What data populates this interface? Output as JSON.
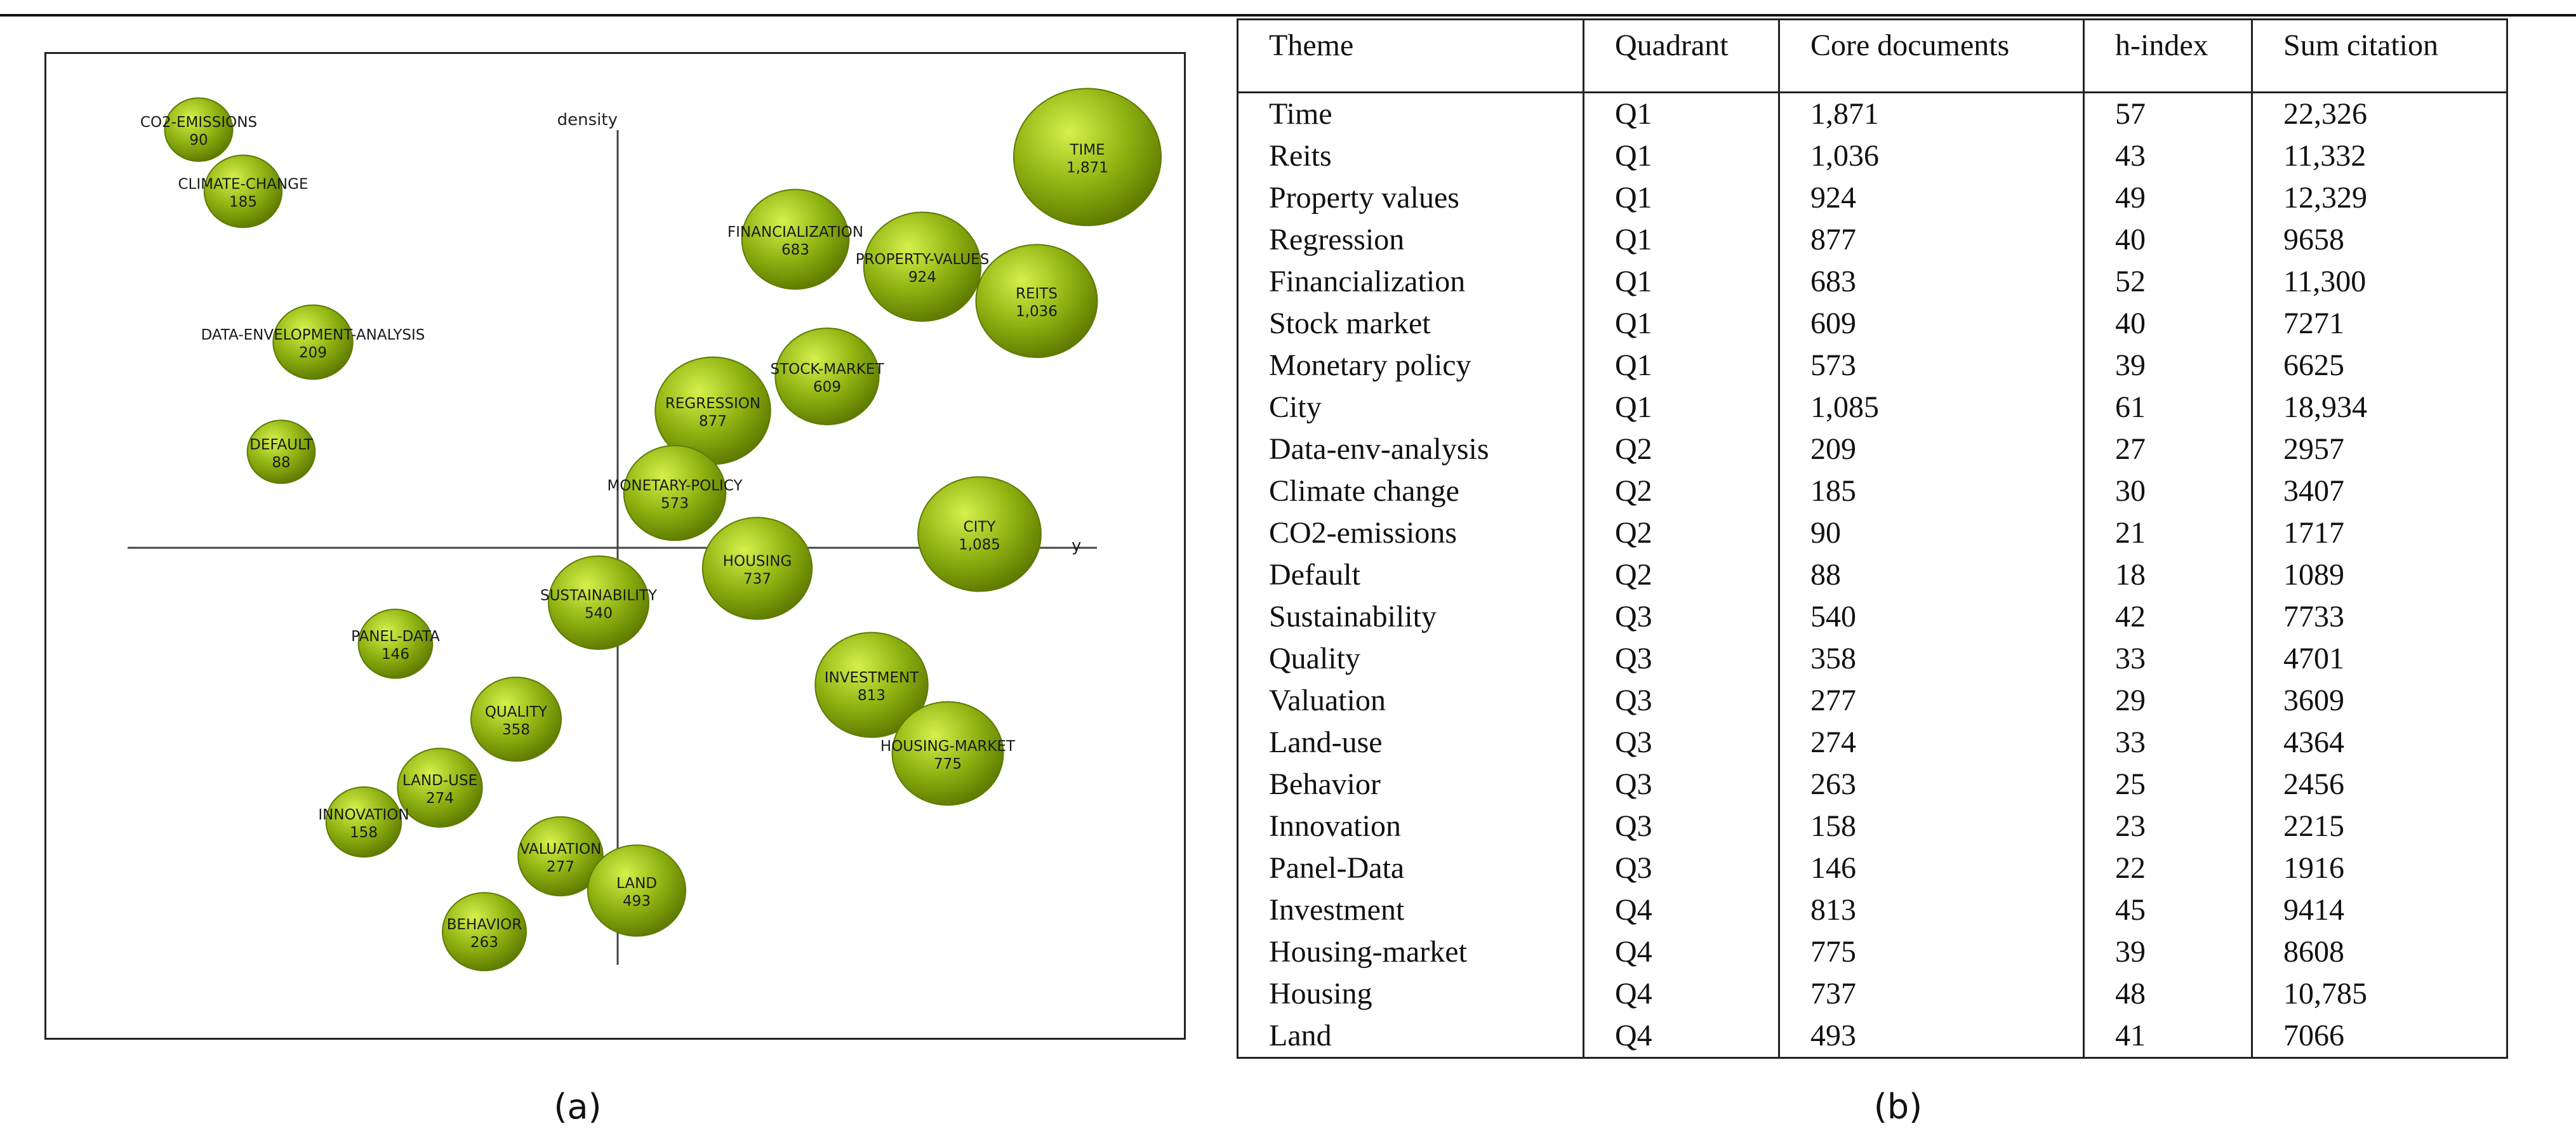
{
  "panel_a_label": "(a)",
  "panel_b_label": "(b)",
  "chart_data": {
    "type": "scatter",
    "subtype": "bubble",
    "title": "",
    "xlabel": "y",
    "ylabel": "density",
    "bubble_color": "#8fb412",
    "bubble_highlight": "#d7f04c",
    "bubble_edge": "#5e7b00",
    "legend": "none",
    "grid": false,
    "points": [
      {
        "label": "CO2-EMISSIONS",
        "value": "90",
        "size": 90,
        "x": -6.6,
        "y": 6.1
      },
      {
        "label": "CLIMATE-CHANGE",
        "value": "185",
        "size": 185,
        "x": -5.9,
        "y": 5.2
      },
      {
        "label": "DATA-ENVELOPMENT-ANALYSIS",
        "value": "209",
        "size": 209,
        "x": -4.8,
        "y": 3.0
      },
      {
        "label": "DEFAULT",
        "value": "88",
        "size": 88,
        "x": -5.3,
        "y": 1.4
      },
      {
        "label": "TIME",
        "value": "1,871",
        "size": 1871,
        "x": 7.4,
        "y": 5.7
      },
      {
        "label": "FINANCIALIZATION",
        "value": "683",
        "size": 683,
        "x": 2.8,
        "y": 4.5
      },
      {
        "label": "PROPERTY-VALUES",
        "value": "924",
        "size": 924,
        "x": 4.8,
        "y": 4.1
      },
      {
        "label": "REITS",
        "value": "1,036",
        "size": 1036,
        "x": 6.6,
        "y": 3.6
      },
      {
        "label": "STOCK-MARKET",
        "value": "609",
        "size": 609,
        "x": 3.3,
        "y": 2.5
      },
      {
        "label": "REGRESSION",
        "value": "877",
        "size": 877,
        "x": 1.5,
        "y": 2.0
      },
      {
        "label": "MONETARY-POLICY",
        "value": "573",
        "size": 573,
        "x": 0.9,
        "y": 0.8
      },
      {
        "label": "CITY",
        "value": "1,085",
        "size": 1085,
        "x": 5.7,
        "y": 0.2
      },
      {
        "label": "HOUSING",
        "value": "737",
        "size": 737,
        "x": 2.2,
        "y": -0.3
      },
      {
        "label": "SUSTAINABILITY",
        "value": "540",
        "size": 540,
        "x": -0.3,
        "y": -0.8
      },
      {
        "label": "PANEL-DATA",
        "value": "146",
        "size": 146,
        "x": -3.5,
        "y": -1.4
      },
      {
        "label": "INVESTMENT",
        "value": "813",
        "size": 813,
        "x": 4.0,
        "y": -2.0
      },
      {
        "label": "QUALITY",
        "value": "358",
        "size": 358,
        "x": -1.6,
        "y": -2.5
      },
      {
        "label": "HOUSING-MARKET",
        "value": "775",
        "size": 775,
        "x": 5.2,
        "y": -3.0
      },
      {
        "label": "LAND-USE",
        "value": "274",
        "size": 274,
        "x": -2.8,
        "y": -3.5
      },
      {
        "label": "INNOVATION",
        "value": "158",
        "size": 158,
        "x": -4.0,
        "y": -4.0
      },
      {
        "label": "VALUATION",
        "value": "277",
        "size": 277,
        "x": -0.9,
        "y": -4.5
      },
      {
        "label": "LAND",
        "value": "493",
        "size": 493,
        "x": 0.3,
        "y": -5.0
      },
      {
        "label": "BEHAVIOR",
        "value": "263",
        "size": 263,
        "x": -2.1,
        "y": -5.6
      }
    ]
  },
  "table": {
    "headers": [
      "Theme",
      "Quadrant",
      "Core documents",
      "h-index",
      "Sum citation"
    ],
    "rows": [
      [
        "Time",
        "Q1",
        "1,871",
        "57",
        "22,326"
      ],
      [
        "Reits",
        "Q1",
        "1,036",
        "43",
        "11,332"
      ],
      [
        "Property values",
        "Q1",
        "924",
        "49",
        "12,329"
      ],
      [
        "Regression",
        "Q1",
        "877",
        "40",
        "9658"
      ],
      [
        "Financialization",
        "Q1",
        "683",
        "52",
        "11,300"
      ],
      [
        "Stock market",
        "Q1",
        "609",
        "40",
        "7271"
      ],
      [
        "Monetary policy",
        "Q1",
        "573",
        "39",
        "6625"
      ],
      [
        "City",
        "Q1",
        "1,085",
        "61",
        "18,934"
      ],
      [
        "Data-env-analysis",
        "Q2",
        "209",
        "27",
        "2957"
      ],
      [
        "Climate change",
        "Q2",
        "185",
        "30",
        "3407"
      ],
      [
        "CO2-emissions",
        "Q2",
        "90",
        "21",
        "1717"
      ],
      [
        "Default",
        "Q2",
        "88",
        "18",
        "1089"
      ],
      [
        "Sustainability",
        "Q3",
        "540",
        "42",
        "7733"
      ],
      [
        "Quality",
        "Q3",
        "358",
        "33",
        "4701"
      ],
      [
        "Valuation",
        "Q3",
        "277",
        "29",
        "3609"
      ],
      [
        "Land-use",
        "Q3",
        "274",
        "33",
        "4364"
      ],
      [
        "Behavior",
        "Q3",
        "263",
        "25",
        "2456"
      ],
      [
        "Innovation",
        "Q3",
        "158",
        "23",
        "2215"
      ],
      [
        "Panel-Data",
        "Q3",
        "146",
        "22",
        "1916"
      ],
      [
        "Investment",
        "Q4",
        "813",
        "45",
        "9414"
      ],
      [
        "Housing-market",
        "Q4",
        "775",
        "39",
        "8608"
      ],
      [
        "Housing",
        "Q4",
        "737",
        "48",
        "10,785"
      ],
      [
        "Land",
        "Q4",
        "493",
        "41",
        "7066"
      ]
    ]
  }
}
